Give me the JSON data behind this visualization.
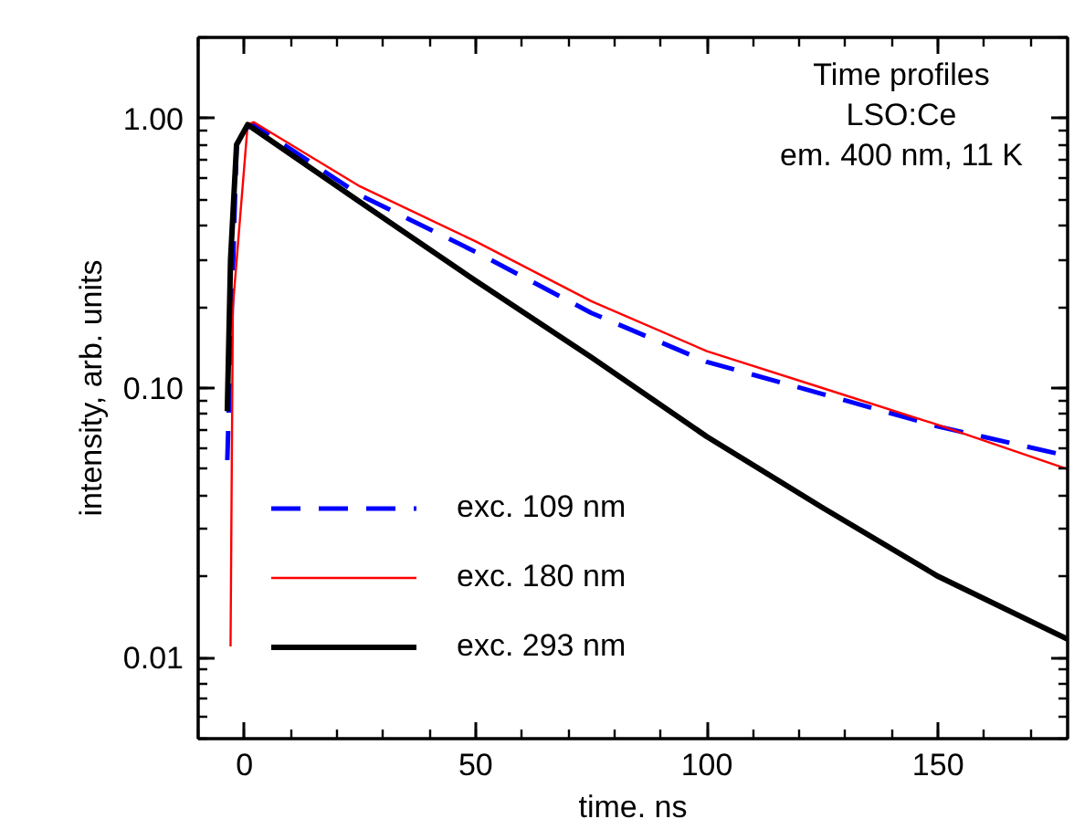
{
  "chart_data": {
    "type": "line",
    "xlabel": "time. ns",
    "ylabel": "intensity, arb. units",
    "annotations": [
      "Time profiles",
      "LSO:Ce",
      "em. 400 nm, 11 K"
    ],
    "log": "y",
    "xlim": [
      -10,
      178
    ],
    "ylim": [
      0.005,
      2
    ],
    "xticks": [
      0,
      50,
      100,
      150
    ],
    "yticks": [
      {
        "value": 0.01,
        "label": "0.01"
      },
      {
        "value": 0.1,
        "label": "0.10"
      },
      {
        "value": 1,
        "label": "1.00"
      }
    ],
    "grid": false,
    "legend": "bottom left",
    "series": [
      {
        "name": "exc. 109 nm",
        "color": "#0000ff",
        "line_style": "dashed",
        "x": [
          -3.7,
          -1.7,
          0.7,
          2,
          25,
          50,
          75,
          100,
          125,
          150,
          178
        ],
        "values": [
          0.054,
          0.8,
          0.93,
          0.95,
          0.52,
          0.32,
          0.19,
          0.125,
          0.095,
          0.072,
          0.056
        ]
      },
      {
        "name": "exc. 180 nm",
        "color": "#ff0000",
        "line_style": "solid",
        "x": [
          -3,
          -2.5,
          0.7,
          2,
          25,
          50,
          75,
          100,
          125,
          150,
          178
        ],
        "values": [
          0.011,
          0.2,
          0.95,
          0.97,
          0.56,
          0.35,
          0.21,
          0.137,
          0.1,
          0.073,
          0.05
        ]
      },
      {
        "name": "exc. 293 nm",
        "color": "#000000",
        "line_style": "solid",
        "x": [
          -3.7,
          -3,
          -1.7,
          0.7,
          25,
          50,
          75,
          100,
          125,
          150,
          178
        ],
        "values": [
          0.082,
          0.3,
          0.8,
          0.95,
          0.49,
          0.25,
          0.13,
          0.066,
          0.036,
          0.02,
          0.0117
        ]
      }
    ]
  }
}
